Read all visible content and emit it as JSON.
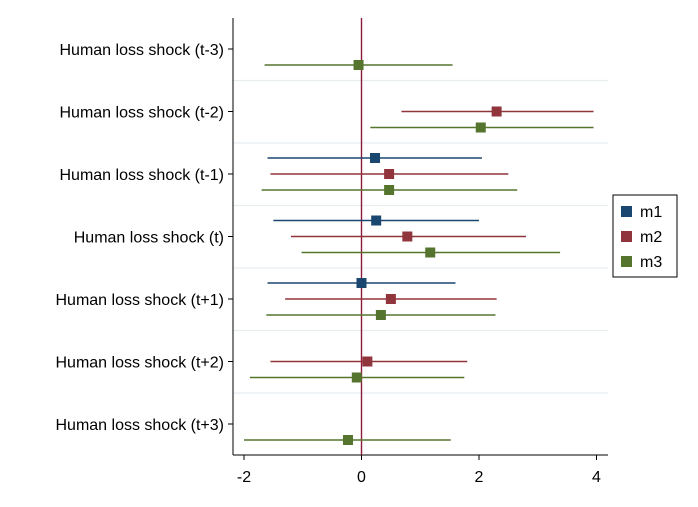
{
  "chart_data": {
    "type": "coefficient-plot",
    "title": "",
    "xlabel": "",
    "ylabel": "",
    "xlim": [
      -2.25,
      4.2
    ],
    "xticks": [
      -2,
      0,
      2,
      4
    ],
    "xtick_labels": [
      "-2",
      "0",
      "2",
      "4"
    ],
    "reference_line_x": 0,
    "reference_line_color": "#8b1a3a",
    "grid": "horizontal separators between groups",
    "legend_position": "right",
    "categories": [
      "Human loss shock (t-3)",
      "Human loss shock (t-2)",
      "Human loss shock (t-1)",
      "Human loss shock (t)",
      "Human loss shock (t+1)",
      "Human loss shock (t+2)",
      "Human loss shock (t+3)"
    ],
    "series": [
      {
        "name": "m1",
        "color": "#1a476f",
        "points": [
          null,
          null,
          {
            "est": 0.23,
            "lo": -1.6,
            "hi": 2.05
          },
          {
            "est": 0.25,
            "lo": -1.5,
            "hi": 2.0
          },
          {
            "est": 0.0,
            "lo": -1.6,
            "hi": 1.6
          },
          null,
          null
        ]
      },
      {
        "name": "m2",
        "color": "#90353b",
        "points": [
          null,
          {
            "est": 2.3,
            "lo": 0.68,
            "hi": 3.95
          },
          {
            "est": 0.47,
            "lo": -1.55,
            "hi": 2.5
          },
          {
            "est": 0.78,
            "lo": -1.2,
            "hi": 2.8
          },
          {
            "est": 0.5,
            "lo": -1.3,
            "hi": 2.3
          },
          {
            "est": 0.1,
            "lo": -1.55,
            "hi": 1.8
          },
          null
        ]
      },
      {
        "name": "m3",
        "color": "#55752f",
        "points": [
          {
            "est": -0.05,
            "lo": -1.65,
            "hi": 1.55
          },
          {
            "est": 2.03,
            "lo": 0.15,
            "hi": 3.95
          },
          {
            "est": 0.47,
            "lo": -1.7,
            "hi": 2.65
          },
          {
            "est": 1.17,
            "lo": -1.02,
            "hi": 3.38
          },
          {
            "est": 0.33,
            "lo": -1.62,
            "hi": 2.28
          },
          {
            "est": -0.08,
            "lo": -1.9,
            "hi": 1.75
          },
          {
            "est": -0.23,
            "lo": -2.0,
            "hi": 1.52
          }
        ]
      }
    ],
    "legend": [
      "m1",
      "m2",
      "m3"
    ]
  }
}
